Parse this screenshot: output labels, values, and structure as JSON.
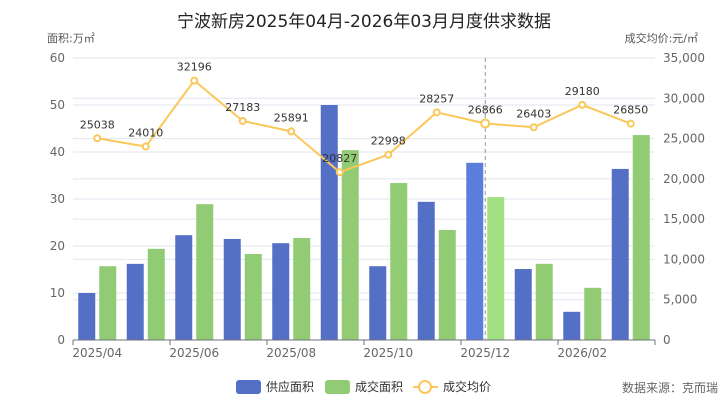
{
  "chart_data": {
    "type": "bar+line",
    "title": "宁波新房2025年04月-2026年03月月度供求数据",
    "ylabel_left": "面积:万㎡",
    "ylabel_right": "成交均价:元/㎡",
    "ylim_left": [
      0,
      60
    ],
    "ylim_right": [
      0,
      35000
    ],
    "yticks_left": [
      "0",
      "10",
      "20",
      "30",
      "40",
      "50",
      "60"
    ],
    "yticks_right": [
      "0",
      "5,000",
      "10,000",
      "15,000",
      "20,000",
      "25,000",
      "30,000",
      "35,000"
    ],
    "categories": [
      "2025/04",
      "2025/05",
      "2025/06",
      "2025/07",
      "2025/08",
      "2025/09",
      "2025/10",
      "2025/11",
      "2025/12",
      "2026/01",
      "2026/02",
      "2026/03"
    ],
    "xtick_labels": [
      "2025/04",
      "",
      "2025/06",
      "",
      "2025/08",
      "",
      "2025/10",
      "",
      "2025/12",
      "",
      "2026/02",
      ""
    ],
    "grid": true,
    "legend_position": "bottom",
    "highlighted_category": "2025/12",
    "series": [
      {
        "name": "供应面积",
        "type": "bar",
        "axis": "left",
        "color": "#5470c6",
        "values": [
          10.0,
          16.2,
          22.3,
          21.5,
          20.6,
          50.0,
          15.7,
          29.4,
          37.7,
          15.1,
          6.0,
          36.4
        ]
      },
      {
        "name": "成交面积",
        "type": "bar",
        "axis": "left",
        "color": "#91cc75",
        "values": [
          15.7,
          19.4,
          28.9,
          18.3,
          21.7,
          40.4,
          33.4,
          23.4,
          30.4,
          16.2,
          11.1,
          43.6
        ]
      },
      {
        "name": "成交均价",
        "type": "line",
        "axis": "right",
        "color": "#fac858",
        "values": [
          25038,
          24010,
          32196,
          27183,
          25891,
          20827,
          22998,
          28257,
          26866,
          26403,
          29180,
          26850
        ]
      }
    ],
    "source": "数据来源：克而瑞"
  }
}
